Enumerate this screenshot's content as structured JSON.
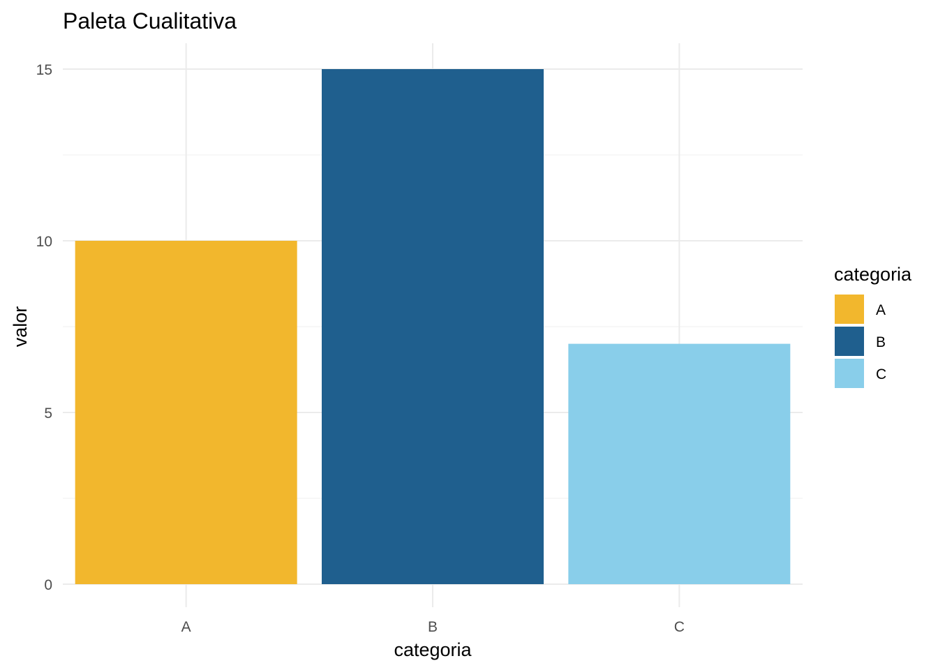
{
  "chart_data": {
    "type": "bar",
    "title": "Paleta Cualitativa",
    "xlabel": "categoria",
    "ylabel": "valor",
    "categories": [
      "A",
      "B",
      "C"
    ],
    "values": [
      10,
      15,
      7
    ],
    "colors": [
      "#F2B72D",
      "#1F5F8E",
      "#89CEEA"
    ],
    "ylim": [
      0,
      15
    ],
    "yticks": [
      0,
      5,
      10,
      15
    ],
    "grid": true,
    "legend": {
      "title": "categoria",
      "placement": "right",
      "entries": [
        "A",
        "B",
        "C"
      ]
    }
  }
}
